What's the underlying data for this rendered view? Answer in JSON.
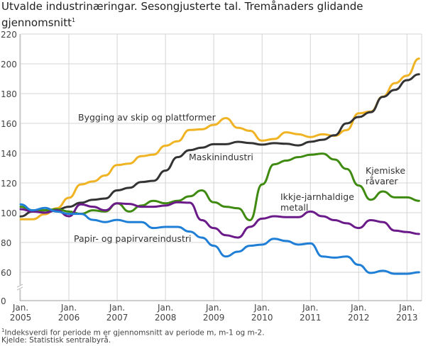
{
  "title": "Utvalde industrinæringar. Sesongjusterte tal. Tremånaders glidande gjennomsnitt",
  "title_footnote_mark": "1",
  "footnote_mark": "1",
  "footnote": "Indeksverdi for periode m er gjennomsnitt av periode m, m-1 og m-2.",
  "source": "Kjelde: Statistisk sentralbyrå.",
  "chart_data": {
    "type": "line",
    "title": "Utvalde industrinæringar. Sesongjusterte tal. Tremånaders glidande gjennomsnitt",
    "xlabel": "",
    "ylabel": "",
    "ylim": [
      0,
      220
    ],
    "y_axis_break": "between 0 and 60",
    "yticks": [
      "0",
      "60",
      "80",
      "100",
      "120",
      "140",
      "160",
      "180",
      "200",
      "220"
    ],
    "xticks": [
      {
        "line1": "Jan.",
        "line2": "2005"
      },
      {
        "line1": "Jan.",
        "line2": "2006"
      },
      {
        "line1": "Jan.",
        "line2": "2007"
      },
      {
        "line1": "Jan.",
        "line2": "2008"
      },
      {
        "line1": "Jan.",
        "line2": "2009"
      },
      {
        "line1": "Jan.",
        "line2": "2010"
      },
      {
        "line1": "Jan.",
        "line2": "2011"
      },
      {
        "line1": "Jan.",
        "line2": "2012"
      },
      {
        "line1": "Jan.",
        "line2": "2013"
      }
    ],
    "grid": true,
    "legend": "inline labels",
    "x": [
      "2005-01",
      "2005-04",
      "2005-07",
      "2005-10",
      "2006-01",
      "2006-04",
      "2006-07",
      "2006-10",
      "2007-01",
      "2007-04",
      "2007-07",
      "2007-10",
      "2008-01",
      "2008-04",
      "2008-07",
      "2008-10",
      "2009-01",
      "2009-04",
      "2009-07",
      "2009-10",
      "2010-01",
      "2010-04",
      "2010-07",
      "2010-10",
      "2011-01",
      "2011-04",
      "2011-07",
      "2011-10",
      "2012-01",
      "2012-04",
      "2012-07",
      "2012-10",
      "2013-01",
      "2013-04"
    ],
    "series": [
      {
        "name": "Bygging av skip og plattformer",
        "color": "#f0b323",
        "values": [
          95.6,
          95.6,
          99,
          103,
          110,
          119,
          121,
          125,
          132,
          133,
          138,
          139,
          145,
          148,
          155.6,
          156,
          159,
          163.5,
          157,
          155,
          148.4,
          149.5,
          154,
          152.7,
          150.8,
          152.7,
          151.6,
          155.5,
          166.7,
          168,
          178,
          187,
          192,
          203.5
        ]
      },
      {
        "name": "Maskinindustri",
        "color": "#333333",
        "values": [
          97.5,
          100.8,
          101.6,
          102,
          104,
          106.7,
          108.7,
          109.5,
          115,
          116.7,
          120.6,
          121.4,
          128.3,
          137.3,
          142,
          143.7,
          146,
          146,
          147.6,
          146.8,
          145.7,
          146.7,
          146.3,
          145.2,
          147.6,
          149,
          152,
          160,
          164.3,
          167.5,
          177.8,
          182.5,
          189,
          193
        ]
      },
      {
        "name": "Kjemiske råvarer",
        "color": "#3f8a10",
        "values": [
          104,
          101.6,
          101.6,
          102.4,
          100.8,
          99.2,
          101.6,
          100.8,
          106.3,
          100.8,
          104.8,
          108,
          106.3,
          108,
          111,
          115,
          107,
          104,
          103,
          95,
          119,
          132.5,
          135,
          137.3,
          138.9,
          139.7,
          135.7,
          129.4,
          118.3,
          108.7,
          114.3,
          110.3,
          110.3,
          108
        ]
      },
      {
        "name": "Ikkje-jarnhaldige metall",
        "color": "#6b1a8a",
        "values": [
          102.4,
          100.8,
          100,
          101.6,
          97.6,
          105.6,
          104,
          101.6,
          106.3,
          105.9,
          104,
          104,
          104.8,
          107,
          106.7,
          95,
          89.7,
          84.9,
          83.3,
          90.5,
          96,
          97.6,
          97,
          97,
          100.8,
          97.6,
          95,
          92.9,
          89.7,
          95,
          93.7,
          88,
          87,
          85.7
        ]
      },
      {
        "name": "Papir- og papirvareindustri",
        "color": "#1f7fd6",
        "values": [
          105.6,
          101.6,
          103.2,
          100.8,
          99.2,
          99.2,
          95.2,
          93.7,
          95.2,
          93.7,
          93.7,
          89.7,
          90.5,
          90.5,
          87.3,
          83.3,
          77.8,
          70.6,
          73.8,
          77.8,
          78.6,
          82.5,
          81,
          78.6,
          79.4,
          70.6,
          69.8,
          70.6,
          65,
          59.5,
          61,
          59,
          59,
          60
        ]
      }
    ],
    "annotations": [
      "Bygging av skip og plattformer",
      "Maskinindustri",
      "Kjemiske",
      "råvarer",
      "Ikkje-jarnhaldige",
      "metall",
      "Papir- og papirvareindustri"
    ]
  }
}
